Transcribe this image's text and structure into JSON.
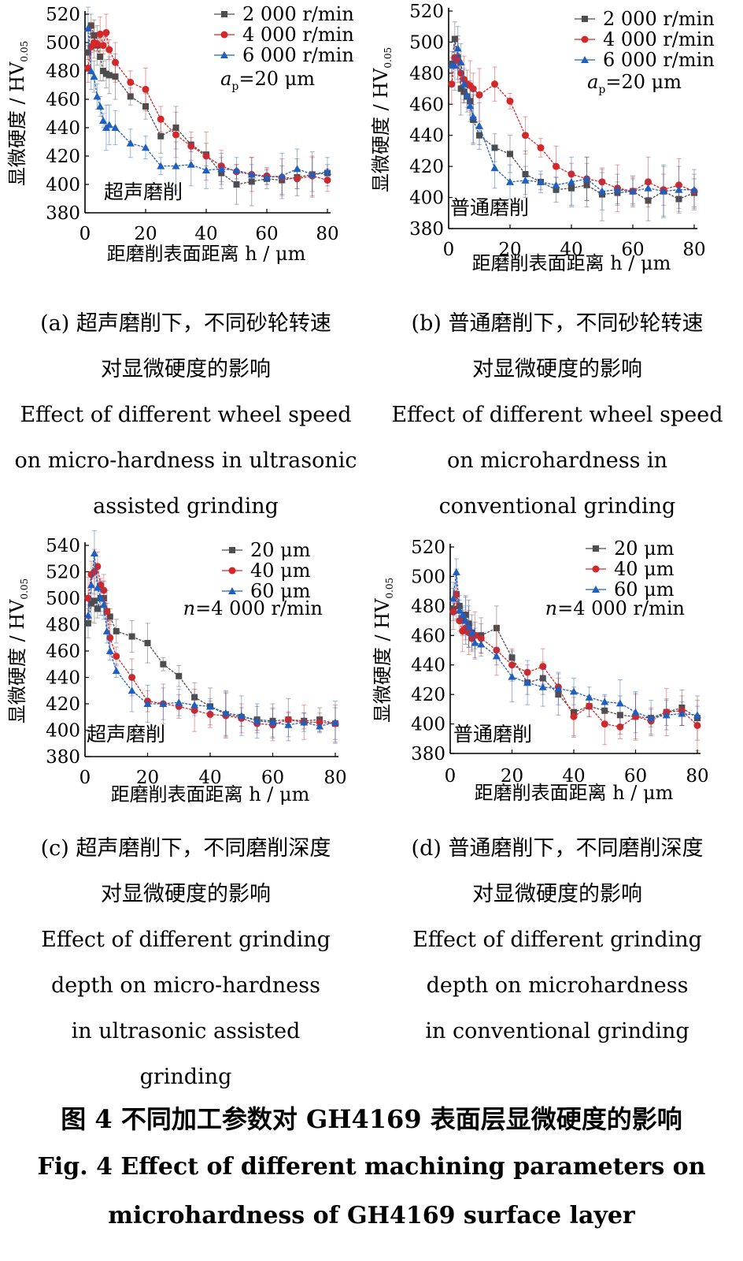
{
  "chart_data": [
    {
      "type": "line",
      "ylabel": "显微硬度 / HV",
      "ylabel_sub": "0.05",
      "xlabel": "距磨削表面距离 h / μm",
      "xlim": [
        0,
        80
      ],
      "ylim": [
        380,
        520
      ],
      "xticks": [
        "0",
        "20",
        "40",
        "60",
        "80"
      ],
      "yticks": [
        "380",
        "400",
        "420",
        "440",
        "460",
        "480",
        "500",
        "520"
      ],
      "annotation": "超声磨削",
      "param": "a_p=20 μm",
      "param_prefix": "a",
      "param_sub": "p",
      "param_value": "=20 μm",
      "legend_position": "top-right",
      "series": [
        {
          "name": "2 000 r/min",
          "color": "#4d4d4d",
          "marker": "square",
          "x": [
            1,
            2,
            3,
            4,
            5,
            6,
            7,
            8,
            10,
            15,
            20,
            25,
            30,
            35,
            40,
            45,
            50,
            55,
            60,
            65,
            70,
            75,
            80
          ],
          "y": [
            493,
            512,
            505,
            498,
            490,
            480,
            478,
            477,
            476,
            462,
            455,
            434,
            440,
            428,
            421,
            408,
            400,
            402,
            404,
            403,
            405,
            407,
            408
          ]
        },
        {
          "name": "4 000 r/min",
          "color": "#d62728",
          "marker": "circle",
          "x": [
            1,
            2,
            3,
            4,
            5,
            6,
            7,
            8,
            10,
            15,
            20,
            25,
            30,
            35,
            40,
            45,
            50,
            55,
            60,
            65,
            70,
            75,
            80
          ],
          "y": [
            482,
            497,
            500,
            499,
            506,
            498,
            507,
            495,
            486,
            472,
            467,
            446,
            435,
            427,
            420,
            413,
            409,
            407,
            406,
            405,
            404,
            406,
            403
          ]
        },
        {
          "name": "6 000 r/min",
          "color": "#1f5fbf",
          "marker": "triangle",
          "x": [
            1,
            2,
            3,
            4,
            5,
            6,
            7,
            8,
            10,
            15,
            20,
            25,
            30,
            35,
            40,
            45,
            50,
            55,
            60,
            65,
            70,
            75,
            80
          ],
          "y": [
            510,
            480,
            476,
            462,
            455,
            445,
            440,
            442,
            440,
            429,
            426,
            413,
            413,
            414,
            410,
            411,
            410,
            407,
            405,
            406,
            411,
            407,
            409
          ]
        }
      ]
    },
    {
      "type": "line",
      "ylabel": "显微硬度 / HV",
      "ylabel_sub": "0.05",
      "xlabel": "距磨削表面距离 h / μm",
      "xlim": [
        0,
        80
      ],
      "ylim": [
        380,
        520
      ],
      "xticks": [
        "0",
        "20",
        "40",
        "60",
        "80"
      ],
      "yticks": [
        "380",
        "400",
        "420",
        "440",
        "460",
        "480",
        "500",
        "520"
      ],
      "annotation": "普通磨削",
      "param": "a_p=20 μm",
      "param_prefix": "a",
      "param_sub": "p",
      "param_value": "=20 μm",
      "legend_position": "top-right",
      "series": [
        {
          "name": "2 000 r/min",
          "color": "#4d4d4d",
          "marker": "square",
          "x": [
            1,
            2,
            3,
            4,
            5,
            6,
            7,
            8,
            10,
            15,
            20,
            25,
            30,
            35,
            40,
            45,
            50,
            55,
            60,
            65,
            70,
            75,
            80
          ],
          "y": [
            486,
            502,
            490,
            470,
            468,
            465,
            462,
            450,
            440,
            432,
            428,
            415,
            410,
            405,
            406,
            408,
            402,
            403,
            404,
            398,
            404,
            399,
            403
          ]
        },
        {
          "name": "4 000 r/min",
          "color": "#d62728",
          "marker": "circle",
          "x": [
            1,
            2,
            3,
            4,
            5,
            6,
            7,
            8,
            10,
            15,
            20,
            25,
            30,
            35,
            40,
            45,
            50,
            55,
            60,
            65,
            70,
            75,
            80
          ],
          "y": [
            473,
            490,
            488,
            480,
            476,
            473,
            472,
            470,
            466,
            473,
            462,
            440,
            432,
            420,
            415,
            412,
            410,
            406,
            404,
            410,
            405,
            408,
            404
          ]
        },
        {
          "name": "6 000 r/min",
          "color": "#1f5fbf",
          "marker": "triangle",
          "x": [
            1,
            2,
            3,
            4,
            5,
            6,
            7,
            8,
            10,
            15,
            20,
            25,
            30,
            35,
            40,
            45,
            50,
            55,
            60,
            65,
            70,
            75,
            80
          ],
          "y": [
            485,
            485,
            496,
            487,
            473,
            466,
            459,
            452,
            446,
            419,
            410,
            411,
            410,
            408,
            410,
            412,
            404,
            405,
            404,
            406,
            404,
            405,
            405
          ]
        }
      ]
    },
    {
      "type": "line",
      "ylabel": "显微硬度 / HV",
      "ylabel_sub": "0.05",
      "xlabel": "距磨削表面距离 h / μm",
      "xlim": [
        0,
        80
      ],
      "ylim": [
        380,
        540
      ],
      "xticks": [
        "0",
        "20",
        "40",
        "60",
        "80"
      ],
      "yticks": [
        "380",
        "400",
        "420",
        "440",
        "460",
        "480",
        "500",
        "520",
        "540"
      ],
      "annotation": "超声磨削",
      "param": "n=4 000 r/min",
      "param_prefix": "n",
      "param_sub": "",
      "param_value": "=4 000 r/min",
      "legend_position": "top-right",
      "series": [
        {
          "name": "20 μm",
          "color": "#4d4d4d",
          "marker": "square",
          "x": [
            1,
            2,
            3,
            4,
            5,
            6,
            7,
            8,
            10,
            15,
            20,
            25,
            30,
            35,
            40,
            45,
            50,
            55,
            60,
            65,
            70,
            75,
            80
          ],
          "y": [
            481,
            496,
            498,
            492,
            500,
            500,
            490,
            486,
            475,
            471,
            466,
            450,
            441,
            425,
            418,
            412,
            410,
            408,
            407,
            408,
            407,
            408,
            405
          ]
        },
        {
          "name": "40 μm",
          "color": "#d62728",
          "marker": "circle",
          "x": [
            1,
            2,
            3,
            4,
            5,
            6,
            7,
            8,
            10,
            15,
            20,
            25,
            30,
            35,
            40,
            45,
            50,
            55,
            60,
            65,
            70,
            75,
            80
          ],
          "y": [
            500,
            518,
            520,
            524,
            510,
            506,
            490,
            470,
            456,
            440,
            422,
            420,
            418,
            415,
            412,
            411,
            409,
            405,
            404,
            408,
            406,
            406,
            405
          ]
        },
        {
          "name": "60 μm",
          "color": "#1f5fbf",
          "marker": "triangle",
          "x": [
            1,
            2,
            3,
            4,
            5,
            6,
            7,
            8,
            10,
            15,
            20,
            25,
            30,
            35,
            40,
            45,
            50,
            55,
            60,
            65,
            70,
            75,
            80
          ],
          "y": [
            487,
            510,
            534,
            508,
            500,
            495,
            475,
            460,
            445,
            430,
            420,
            420,
            421,
            419,
            418,
            413,
            411,
            407,
            406,
            404,
            406,
            403,
            406
          ]
        }
      ]
    },
    {
      "type": "line",
      "ylabel": "显微硬度 / HV",
      "ylabel_sub": "0.05",
      "xlabel": "距磨削表面距离 h / μm",
      "xlim": [
        0,
        80
      ],
      "ylim": [
        380,
        520
      ],
      "xticks": [
        "0",
        "20",
        "40",
        "60",
        "80"
      ],
      "yticks": [
        "380",
        "400",
        "420",
        "440",
        "460",
        "480",
        "500",
        "520"
      ],
      "annotation": "普通磨削",
      "param": "n=4 000 r/min",
      "param_prefix": "n",
      "param_sub": "",
      "param_value": "=4 000 r/min",
      "legend_position": "top-right",
      "series": [
        {
          "name": "20 μm",
          "color": "#4d4d4d",
          "marker": "square",
          "x": [
            1,
            2,
            3,
            4,
            5,
            6,
            7,
            8,
            10,
            15,
            20,
            25,
            30,
            35,
            40,
            45,
            50,
            55,
            60,
            65,
            70,
            75,
            80
          ],
          "y": [
            478,
            488,
            480,
            470,
            474,
            468,
            462,
            460,
            460,
            465,
            445,
            428,
            431,
            420,
            408,
            412,
            409,
            406,
            405,
            404,
            408,
            411,
            404
          ]
        },
        {
          "name": "40 μm",
          "color": "#d62728",
          "marker": "circle",
          "x": [
            1,
            2,
            3,
            4,
            5,
            6,
            7,
            8,
            10,
            15,
            20,
            25,
            30,
            35,
            40,
            45,
            50,
            55,
            60,
            65,
            70,
            75,
            80
          ],
          "y": [
            476,
            488,
            470,
            463,
            465,
            462,
            458,
            460,
            458,
            450,
            440,
            435,
            439,
            425,
            405,
            412,
            400,
            398,
            405,
            402,
            408,
            409,
            399
          ]
        },
        {
          "name": "60 μm",
          "color": "#1f5fbf",
          "marker": "triangle",
          "x": [
            1,
            2,
            3,
            4,
            5,
            6,
            7,
            8,
            10,
            15,
            20,
            25,
            30,
            35,
            40,
            45,
            50,
            55,
            60,
            65,
            70,
            75,
            80
          ],
          "y": [
            485,
            503,
            477,
            474,
            470,
            466,
            462,
            455,
            454,
            446,
            432,
            428,
            425,
            424,
            422,
            418,
            415,
            414,
            408,
            404,
            406,
            407,
            406
          ]
        }
      ]
    }
  ],
  "captions": [
    {
      "cn": "(a)  超声磨削下，不同砂轮转速",
      "cn2": "对显微硬度的影响",
      "en": [
        "Effect of different wheel speed",
        "on micro-hardness in ultrasonic",
        "assisted grinding"
      ]
    },
    {
      "cn": "(b)  普通磨削下，不同砂轮转速",
      "cn2": "对显微硬度的影响",
      "en": [
        "Effect of different wheel speed",
        "on microhardness in",
        "conventional grinding"
      ]
    },
    {
      "cn": "(c)  超声磨削下，不同磨削深度",
      "cn2": "对显微硬度的影响",
      "en": [
        "Effect of different grinding",
        "depth on micro-hardness",
        "in ultrasonic assisted",
        "grinding"
      ]
    },
    {
      "cn": "(d)  普通磨削下，不同磨削深度",
      "cn2": "对显微硬度的影响",
      "en": [
        "Effect of different grinding",
        "depth on microhardness",
        "in conventional grinding"
      ]
    }
  ],
  "figure": {
    "title_cn": "图 4    不同加工参数对 GH4169 表面层显微硬度的影响",
    "title_en_1": "Fig.  4 Effect of different machining parameters on",
    "title_en_2": "microhardness of GH4169 surface layer"
  }
}
